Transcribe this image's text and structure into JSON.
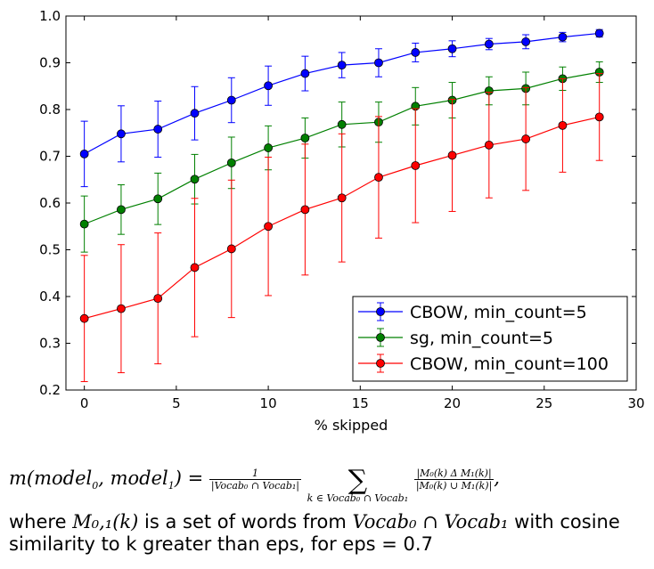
{
  "chart_data": {
    "type": "line",
    "error_bars": true,
    "xlabel": "% skipped",
    "ylabel": "",
    "xlim": [
      -1,
      30
    ],
    "ylim": [
      0.2,
      1.0
    ],
    "xticks": [
      0,
      5,
      10,
      15,
      20,
      25,
      30
    ],
    "xtick_labels": [
      "0",
      "5",
      "10",
      "15",
      "20",
      "25",
      "30"
    ],
    "yticks": [
      0.2,
      0.3,
      0.4,
      0.5,
      0.6,
      0.7,
      0.8,
      0.9,
      1.0
    ],
    "ytick_labels": [
      "0.2",
      "0.3",
      "0.4",
      "0.5",
      "0.6",
      "0.7",
      "0.8",
      "0.9",
      "1.0"
    ],
    "grid": false,
    "legend_position": "lower-right",
    "x": [
      0,
      2,
      4,
      6,
      8,
      10,
      12,
      14,
      16,
      18,
      20,
      22,
      24,
      26,
      28
    ],
    "series": [
      {
        "name": "CBOW, min_count=5",
        "color": "#0000ff",
        "values": [
          0.705,
          0.748,
          0.758,
          0.792,
          0.82,
          0.851,
          0.877,
          0.895,
          0.9,
          0.922,
          0.93,
          0.94,
          0.945,
          0.955,
          0.963
        ],
        "errors": [
          0.07,
          0.06,
          0.06,
          0.057,
          0.048,
          0.042,
          0.037,
          0.027,
          0.03,
          0.02,
          0.017,
          0.012,
          0.015,
          0.01,
          0.008
        ]
      },
      {
        "name": "sg, min_count=5",
        "color": "#008000",
        "values": [
          0.555,
          0.586,
          0.609,
          0.651,
          0.686,
          0.718,
          0.739,
          0.768,
          0.773,
          0.807,
          0.82,
          0.84,
          0.845,
          0.866,
          0.88
        ],
        "errors": [
          0.06,
          0.053,
          0.055,
          0.053,
          0.055,
          0.047,
          0.043,
          0.048,
          0.043,
          0.04,
          0.038,
          0.03,
          0.035,
          0.025,
          0.022
        ]
      },
      {
        "name": "CBOW, min_count=100",
        "color": "#ff0000",
        "values": [
          0.353,
          0.374,
          0.396,
          0.462,
          0.502,
          0.55,
          0.586,
          0.611,
          0.655,
          0.68,
          0.702,
          0.724,
          0.737,
          0.766,
          0.784
        ],
        "errors": [
          0.135,
          0.137,
          0.14,
          0.148,
          0.147,
          0.148,
          0.14,
          0.137,
          0.13,
          0.122,
          0.12,
          0.113,
          0.11,
          0.1,
          0.093
        ]
      }
    ]
  },
  "formula": {
    "lhs": "m(model",
    "lhs_sub0": "0",
    "lhs_mid": ", model",
    "lhs_sub1": "1",
    "lhs_end": ") =",
    "frac1_num": "1",
    "frac1_den": "|Vocab₀ ∩ Vocab₁|",
    "sum_symbol": "∑",
    "sum_index": "k ∈ Vocab₀ ∩ Vocab₁",
    "frac2_num": "|M₀(k) Δ M₁(k)|",
    "frac2_den": "|M₀(k) ∪ M₁(k)|",
    "tail": ","
  },
  "description": {
    "prefix": "where ",
    "math1": "M₀,₁(k)",
    "mid": " is a set of words from ",
    "math2": "Vocab₀ ∩ Vocab₁",
    "suffix": " with cosine similarity to k greater than eps, for eps = 0.7"
  }
}
